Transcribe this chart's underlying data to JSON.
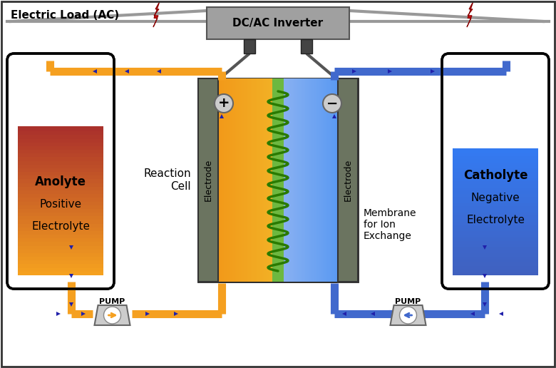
{
  "fig_width": 7.8,
  "fig_height": 5.16,
  "dpi": 100,
  "bg_color": "#ffffff",
  "orange": "#F5A020",
  "orange_dark": "#CC4400",
  "blue_light": "#87CEEB",
  "blue_mid": "#4169CD",
  "blue_dark": "#1030A0",
  "gray_electrode": "#6B7B5A",
  "gray_box": "#8A8A8A",
  "green_membrane": "#70C030",
  "wire_gray": "#999999",
  "arrow_color": "#2020AA",
  "inverter_color": "#A0A0A0",
  "title_text": "Electric Load (AC)",
  "inverter_text": "DC/AC Inverter",
  "anolyte_line1": "Anolyte",
  "anolyte_line2": "Positive",
  "anolyte_line3": "Electrolyte",
  "catholyte_line1": "Catholyte",
  "catholyte_line2": "Negative",
  "catholyte_line3": "Electrolyte",
  "reaction_cell_text": "Reaction\nCell",
  "membrane_text": "Membrane\nfor Ion\nExchange",
  "pump_text": "PUMP"
}
